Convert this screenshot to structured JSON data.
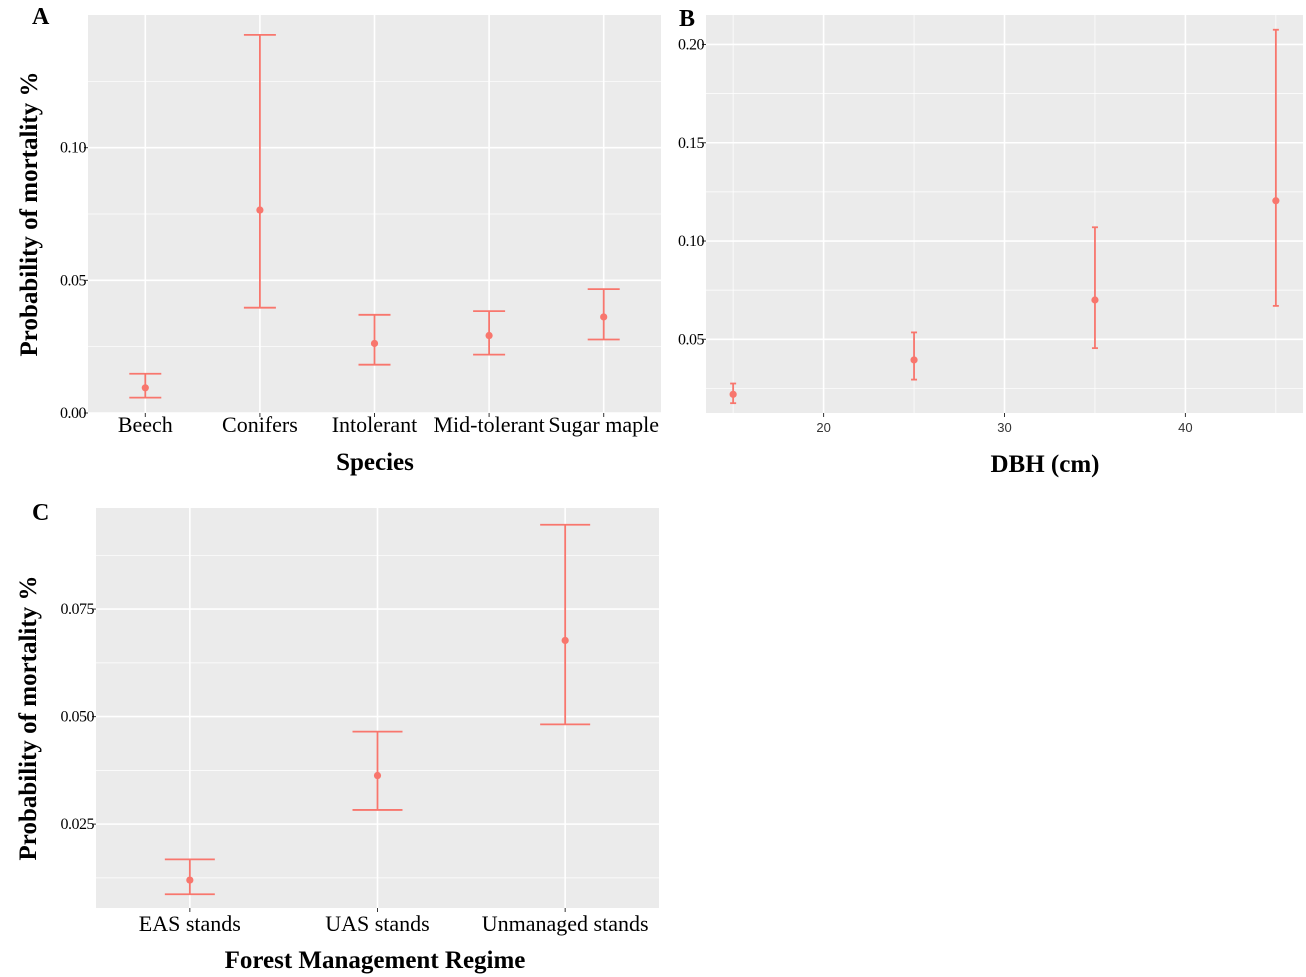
{
  "chart_data": [
    {
      "type": "scatter",
      "panel_label": "A",
      "title": "",
      "xlabel": "Species",
      "ylabel": "Probability of mortality %",
      "categories": [
        "Beech",
        "Conifers",
        "Intolerant",
        "Mid-tolerant",
        "Sugar maple"
      ],
      "values": [
        0.0095,
        0.0765,
        0.0262,
        0.0292,
        0.0362
      ],
      "lower": [
        0.0058,
        0.0397,
        0.0182,
        0.022,
        0.0277
      ],
      "upper": [
        0.0148,
        0.1425,
        0.037,
        0.0384,
        0.0467
      ],
      "ylim": [
        0,
        0.15
      ],
      "yticks": [
        0.0,
        0.05,
        0.1
      ],
      "ytick_labels": [
        "0.00",
        "0.05",
        "0.10"
      ],
      "grid": true
    },
    {
      "type": "scatter",
      "panel_label": "B",
      "title": "",
      "xlabel": "DBH (cm)",
      "ylabel": "",
      "x": [
        15,
        25,
        35,
        45
      ],
      "values": [
        0.022,
        0.0395,
        0.07,
        0.1205
      ],
      "lower": [
        0.0175,
        0.0295,
        0.0455,
        0.067
      ],
      "upper": [
        0.0275,
        0.0535,
        0.107,
        0.2075
      ],
      "xlim": [
        13.5,
        46.5
      ],
      "xticks": [
        20,
        30,
        40
      ],
      "xtick_labels": [
        "20",
        "30",
        "40"
      ],
      "ylim": [
        0.0125,
        0.215
      ],
      "yticks": [
        0.05,
        0.1,
        0.15,
        0.2
      ],
      "ytick_labels": [
        "0.05",
        "0.10",
        "0.15",
        "0.20"
      ],
      "grid": true
    },
    {
      "type": "scatter",
      "panel_label": "C",
      "title": "",
      "xlabel": "Forest Management Regime",
      "ylabel": "Probability of mortality %",
      "categories": [
        "EAS stands",
        "UAS stands",
        "Unmanaged stands"
      ],
      "values": [
        0.012,
        0.0363,
        0.0677
      ],
      "lower": [
        0.0087,
        0.0283,
        0.0482
      ],
      "upper": [
        0.0168,
        0.0465,
        0.0946
      ],
      "ylim": [
        0.0055,
        0.0985
      ],
      "yticks": [
        0.025,
        0.05,
        0.075
      ],
      "ytick_labels": [
        "0.025",
        "0.050",
        "0.075"
      ],
      "grid": true
    }
  ]
}
